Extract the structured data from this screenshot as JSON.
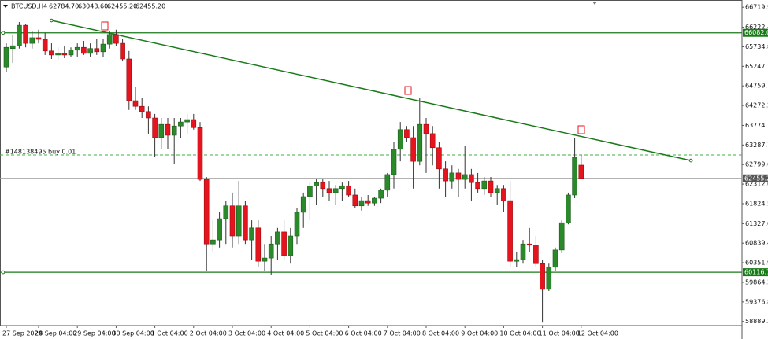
{
  "header": {
    "symbol": "BTCUSD,H4",
    "ohlc": [
      "62784.70",
      "63043.60",
      "62455.20",
      "62455.20"
    ]
  },
  "chart_data": {
    "type": "candlestick",
    "categories": [
      "27 Sep 2024",
      null,
      null,
      null,
      null,
      "28 Sep 04:00",
      null,
      null,
      null,
      null,
      null,
      "29 Sep 04:00",
      null,
      null,
      null,
      null,
      null,
      "30 Sep 04:00",
      null,
      null,
      null,
      null,
      null,
      "1 Oct 04:00",
      null,
      null,
      null,
      null,
      null,
      "2 Oct 04:00",
      null,
      null,
      null,
      null,
      null,
      "3 Oct 04:00",
      null,
      null,
      null,
      null,
      null,
      "4 Oct 04:00",
      null,
      null,
      null,
      null,
      null,
      "5 Oct 04:00",
      null,
      null,
      null,
      null,
      null,
      "6 Oct 04:00",
      null,
      null,
      null,
      null,
      null,
      "7 Oct 04:00",
      null,
      null,
      null,
      null,
      null,
      "8 Oct 04:00",
      null,
      null,
      null,
      null,
      null,
      "9 Oct 04:00",
      null,
      null,
      null,
      null,
      null,
      "10 Oct 04:00",
      null,
      null,
      null,
      null,
      null,
      "11 Oct 04:00",
      null,
      null,
      null,
      null,
      null,
      "12 Oct 04:00"
    ],
    "open": [
      65230,
      65690,
      65760,
      66270,
      65820,
      65960,
      65920,
      65630,
      65530,
      65570,
      65530,
      65650,
      65720,
      65570,
      65690,
      65610,
      65800,
      66040,
      65820,
      65430,
      64390,
      64250,
      64120,
      63960,
      63470,
      63800,
      63530,
      63760,
      63860,
      63920,
      63720,
      62430,
      60820,
      60920,
      61450,
      61770,
      61020,
      61770,
      60920,
      61220,
      60390,
      60470,
      60820,
      61120,
      60530,
      61020,
      61610,
      62000,
      62260,
      62350,
      62200,
      62100,
      62200,
      62270,
      62040,
      61770,
      61900,
      61840,
      61960,
      62160,
      62550,
      63180,
      63670,
      63470,
      62880,
      63800,
      63570,
      63220,
      62690,
      62390,
      62590,
      62430,
      62550,
      62350,
      62200,
      62390,
      62100,
      62200,
      61900,
      60390,
      60430,
      60820,
      60790,
      60330,
      59690,
      60240,
      60670,
      61350,
      62040,
      62784.7
    ],
    "high": [
      65820,
      66020,
      66350,
      66310,
      66120,
      66160,
      66080,
      65820,
      65720,
      65760,
      65720,
      65820,
      65880,
      65820,
      65920,
      65920,
      66120,
      66160,
      65920,
      65630,
      64740,
      64450,
      64250,
      64060,
      63960,
      63960,
      63960,
      63960,
      64060,
      64060,
      63860,
      62490,
      61410,
      61610,
      61900,
      62100,
      62390,
      61900,
      61410,
      61410,
      60820,
      61020,
      61220,
      61410,
      61220,
      61710,
      62100,
      62350,
      62430,
      62430,
      62390,
      62290,
      62350,
      62390,
      62200,
      62000,
      62040,
      62000,
      62200,
      62590,
      63370,
      63860,
      63760,
      63760,
      64450,
      63960,
      63760,
      63370,
      62880,
      62780,
      62690,
      63270,
      62690,
      62590,
      62490,
      62490,
      62290,
      62290,
      62390,
      60630,
      60920,
      61220,
      61020,
      60430,
      60330,
      60730,
      61410,
      62100,
      63470,
      63043.6
    ],
    "low": [
      65100,
      65330,
      65690,
      65720,
      65690,
      65820,
      65530,
      65430,
      65410,
      65450,
      65490,
      65490,
      65530,
      65490,
      65530,
      65490,
      65690,
      65760,
      65370,
      64160,
      64160,
      63960,
      63570,
      62980,
      63180,
      63180,
      62820,
      63470,
      63570,
      63670,
      62390,
      60140,
      60630,
      60730,
      60820,
      60730,
      60820,
      60820,
      60430,
      60240,
      60140,
      60040,
      60430,
      60430,
      60330,
      60820,
      61220,
      61410,
      61800,
      62000,
      61900,
      61800,
      61900,
      62000,
      61710,
      61650,
      61770,
      61770,
      61840,
      62000,
      62200,
      62880,
      63370,
      62200,
      62780,
      62590,
      62780,
      62200,
      62000,
      62200,
      62000,
      62200,
      61900,
      62100,
      62040,
      62000,
      61800,
      61610,
      60240,
      60240,
      60330,
      60630,
      60240,
      58860,
      59650,
      60140,
      60590,
      61310,
      61960,
      62455.2
    ],
    "close": [
      65720,
      65760,
      66270,
      65820,
      65960,
      65920,
      65630,
      65530,
      65570,
      65530,
      65650,
      65720,
      65570,
      65690,
      65610,
      65800,
      66040,
      65820,
      65430,
      64390,
      64250,
      64120,
      63960,
      63470,
      63800,
      63530,
      63760,
      63860,
      63920,
      63720,
      62430,
      60820,
      60920,
      61450,
      61770,
      61020,
      61770,
      60920,
      61220,
      60390,
      60470,
      60820,
      61120,
      60530,
      61020,
      61610,
      62000,
      62260,
      62350,
      62200,
      62100,
      62200,
      62270,
      62040,
      61770,
      61900,
      61840,
      61960,
      62160,
      62550,
      63180,
      63670,
      63470,
      62880,
      63800,
      63570,
      63220,
      62690,
      62390,
      62590,
      62430,
      62550,
      62350,
      62200,
      62390,
      62100,
      62200,
      61900,
      60390,
      60430,
      60820,
      60790,
      60330,
      59690,
      60240,
      60670,
      61350,
      62040,
      62980,
      62455.2
    ],
    "up_color": "#2a8a2a",
    "down_color": "#e5141e",
    "ylim": [
      58786,
      66900
    ],
    "yticks": [
      {
        "value": 66719.9,
        "label": "66719.90"
      },
      {
        "value": 66222.4,
        "label": "66222.40"
      },
      {
        "value": 65734.85,
        "label": "65734.85"
      },
      {
        "value": 65247.3,
        "label": "65247.30"
      },
      {
        "value": 64759.75,
        "label": "64759.75"
      },
      {
        "value": 64272.2,
        "label": "64272.20"
      },
      {
        "value": 63774.7,
        "label": "63774.70"
      },
      {
        "value": 63287.15,
        "label": "63287.15"
      },
      {
        "value": 62799.6,
        "label": "62799.60"
      },
      {
        "value": 62312.05,
        "label": "62312.05"
      },
      {
        "value": 61824.5,
        "label": "61824.50"
      },
      {
        "value": 61327,
        "label": "61327.00"
      },
      {
        "value": 60839.45,
        "label": "60839.45"
      },
      {
        "value": 60351.9,
        "label": "60351.90"
      },
      {
        "value": 59864.35,
        "label": "59864.35"
      },
      {
        "value": 59376.8,
        "label": "59376.80"
      },
      {
        "value": 58889.25,
        "label": "58889.25"
      }
    ],
    "levels": [
      {
        "value": 66082,
        "label": "66082.00",
        "color": "#1a7a1a"
      },
      {
        "value": 60116.71,
        "label": "60116.71",
        "color": "#1a7a1a"
      }
    ],
    "current_price": {
      "value": 62455.2,
      "label": "62455.20",
      "color": "#9a9a9a"
    },
    "order_line": {
      "value": 63040,
      "label": "#148138495 buy 0.01",
      "color": "#3cb03c"
    },
    "trendline": {
      "x": [
        7,
        106
      ],
      "y": [
        66390,
        62900
      ],
      "color": "#1a7a1a"
    },
    "grid": false
  }
}
